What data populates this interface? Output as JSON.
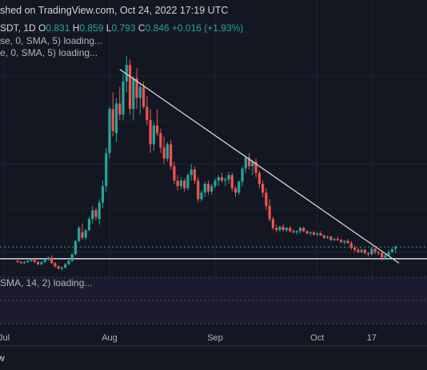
{
  "header": {
    "published": "shed on TradingView.com, Oct 24, 2022 17:19 UTC",
    "symbol_tf": "SDT, 1D",
    "o_label": "O",
    "o_value": "0.831",
    "h_label": "H",
    "h_value": "0.859",
    "l_label": "L",
    "l_value": "0.793",
    "c_label": "C",
    "c_value": "0.846",
    "change": "+0.016 (+1.93%)",
    "indicator1": "se, 0, SMA, 5) loading...",
    "indicator2": "e, 0, SMA, 5) loading...",
    "oscillator": "SMA, 14, 2) loading..."
  },
  "footer": {
    "label": "w"
  },
  "colors": {
    "background": "#131722",
    "up": "#26a69a",
    "down": "#ef5350",
    "trendline": "#d1d4dc",
    "grid": "#1f2330",
    "osc_band": "#1c1a2e",
    "osc_dotted": "#4a4a66"
  },
  "chart_data": {
    "type": "candlestick",
    "x_tick_labels": [
      "Jul",
      "Aug",
      "Sep",
      "Oct",
      "17"
    ],
    "x_tick_dates": [
      "2022-07-01",
      "2022-08-01",
      "2022-09-01",
      "2022-10-01",
      "2022-10-17"
    ],
    "last_date": "2022-10-24",
    "price_range": [
      0.6,
      2.8
    ],
    "support_line": 0.74,
    "dashed_level": 0.846,
    "trendline": {
      "from": [
        "2022-08-04",
        2.46
      ],
      "to": [
        "2022-10-25",
        0.7
      ]
    },
    "candles": [
      [
        0.72,
        0.73,
        0.7,
        0.71
      ],
      [
        0.71,
        0.72,
        0.69,
        0.7
      ],
      [
        0.7,
        0.72,
        0.69,
        0.71
      ],
      [
        0.71,
        0.73,
        0.7,
        0.72
      ],
      [
        0.72,
        0.74,
        0.71,
        0.73
      ],
      [
        0.73,
        0.75,
        0.7,
        0.71
      ],
      [
        0.71,
        0.72,
        0.68,
        0.69
      ],
      [
        0.69,
        0.72,
        0.68,
        0.71
      ],
      [
        0.71,
        0.74,
        0.7,
        0.73
      ],
      [
        0.73,
        0.76,
        0.72,
        0.75
      ],
      [
        0.75,
        0.77,
        0.69,
        0.7
      ],
      [
        0.7,
        0.71,
        0.66,
        0.67
      ],
      [
        0.67,
        0.68,
        0.64,
        0.65
      ],
      [
        0.65,
        0.67,
        0.63,
        0.66
      ],
      [
        0.66,
        0.7,
        0.65,
        0.69
      ],
      [
        0.69,
        0.73,
        0.68,
        0.72
      ],
      [
        0.72,
        0.79,
        0.71,
        0.78
      ],
      [
        0.78,
        0.91,
        0.77,
        0.9
      ],
      [
        0.9,
        1.04,
        0.89,
        1.02
      ],
      [
        0.98,
        1.06,
        0.91,
        0.93
      ],
      [
        0.93,
        1.01,
        0.91,
        1.0
      ],
      [
        1.0,
        1.12,
        0.99,
        1.1
      ],
      [
        1.1,
        1.22,
        1.06,
        1.18
      ],
      [
        1.18,
        1.2,
        1.09,
        1.12
      ],
      [
        1.1,
        1.28,
        1.05,
        1.25
      ],
      [
        1.25,
        1.45,
        1.2,
        1.4
      ],
      [
        1.4,
        1.75,
        1.35,
        1.7
      ],
      [
        1.7,
        2.12,
        1.65,
        2.1
      ],
      [
        2.1,
        2.25,
        1.85,
        1.9
      ],
      [
        1.88,
        2.2,
        1.8,
        2.15
      ],
      [
        2.15,
        2.3,
        2.0,
        2.05
      ],
      [
        2.05,
        2.42,
        2.0,
        2.35
      ],
      [
        2.35,
        2.58,
        2.25,
        2.5
      ],
      [
        2.5,
        2.55,
        2.05,
        2.1
      ],
      [
        2.1,
        2.4,
        2.0,
        2.38
      ],
      [
        2.38,
        2.47,
        2.1,
        2.2
      ],
      [
        2.2,
        2.33,
        2.05,
        2.3
      ],
      [
        2.3,
        2.35,
        2.1,
        2.12
      ],
      [
        2.12,
        2.22,
        1.95,
        2.0
      ],
      [
        2.0,
        2.1,
        1.7,
        1.78
      ],
      [
        1.78,
        1.98,
        1.72,
        1.95
      ],
      [
        1.95,
        2.1,
        1.85,
        1.88
      ],
      [
        1.88,
        1.92,
        1.7,
        1.75
      ],
      [
        1.75,
        1.85,
        1.6,
        1.65
      ],
      [
        1.65,
        1.8,
        1.62,
        1.78
      ],
      [
        1.78,
        1.82,
        1.55,
        1.58
      ],
      [
        1.58,
        1.62,
        1.42,
        1.45
      ],
      [
        1.45,
        1.5,
        1.36,
        1.4
      ],
      [
        1.4,
        1.48,
        1.37,
        1.45
      ],
      [
        1.45,
        1.47,
        1.35,
        1.38
      ],
      [
        1.38,
        1.52,
        1.36,
        1.5
      ],
      [
        1.5,
        1.6,
        1.45,
        1.55
      ],
      [
        1.55,
        1.58,
        1.42,
        1.45
      ],
      [
        1.45,
        1.48,
        1.25,
        1.28
      ],
      [
        1.28,
        1.36,
        1.26,
        1.34
      ],
      [
        1.34,
        1.44,
        1.3,
        1.42
      ],
      [
        1.42,
        1.45,
        1.32,
        1.35
      ],
      [
        1.35,
        1.42,
        1.32,
        1.4
      ],
      [
        1.4,
        1.47,
        1.38,
        1.45
      ],
      [
        1.45,
        1.5,
        1.4,
        1.48
      ],
      [
        1.48,
        1.52,
        1.43,
        1.45
      ],
      [
        1.45,
        1.48,
        1.4,
        1.46
      ],
      [
        1.46,
        1.53,
        1.42,
        1.5
      ],
      [
        1.5,
        1.52,
        1.35,
        1.38
      ],
      [
        1.38,
        1.4,
        1.3,
        1.34
      ],
      [
        1.34,
        1.45,
        1.32,
        1.44
      ],
      [
        1.44,
        1.58,
        1.4,
        1.56
      ],
      [
        1.56,
        1.68,
        1.52,
        1.66
      ],
      [
        1.66,
        1.7,
        1.55,
        1.58
      ],
      [
        1.58,
        1.64,
        1.5,
        1.62
      ],
      [
        1.62,
        1.65,
        1.48,
        1.52
      ],
      [
        1.52,
        1.54,
        1.38,
        1.42
      ],
      [
        1.42,
        1.45,
        1.3,
        1.34
      ],
      [
        1.34,
        1.38,
        1.18,
        1.22
      ],
      [
        1.22,
        1.28,
        1.08,
        1.1
      ],
      [
        1.1,
        1.12,
        1.0,
        1.02
      ],
      [
        1.02,
        1.05,
        0.98,
        1.0
      ],
      [
        1.0,
        1.04,
        0.98,
        1.03
      ],
      [
        1.03,
        1.05,
        0.99,
        1.0
      ],
      [
        1.0,
        1.03,
        0.98,
        1.02
      ],
      [
        1.02,
        1.04,
        0.98,
        0.99
      ],
      [
        0.99,
        1.01,
        0.97,
        0.98
      ],
      [
        0.98,
        1.0,
        0.96,
        0.99
      ],
      [
        0.99,
        1.03,
        0.97,
        1.02
      ],
      [
        1.02,
        1.03,
        0.98,
        0.99
      ],
      [
        0.99,
        1.0,
        0.96,
        0.97
      ],
      [
        0.97,
        0.99,
        0.95,
        0.98
      ],
      [
        0.98,
        0.99,
        0.95,
        0.96
      ],
      [
        0.96,
        0.98,
        0.94,
        0.97
      ],
      [
        0.97,
        0.99,
        0.95,
        0.95
      ],
      [
        0.95,
        0.96,
        0.92,
        0.93
      ],
      [
        0.93,
        0.95,
        0.92,
        0.94
      ],
      [
        0.94,
        0.95,
        0.9,
        0.91
      ],
      [
        0.91,
        0.93,
        0.9,
        0.92
      ],
      [
        0.92,
        0.94,
        0.9,
        0.91
      ],
      [
        0.91,
        0.92,
        0.88,
        0.89
      ],
      [
        0.89,
        0.91,
        0.87,
        0.9
      ],
      [
        0.9,
        0.92,
        0.88,
        0.88
      ],
      [
        0.88,
        0.9,
        0.82,
        0.84
      ],
      [
        0.84,
        0.86,
        0.8,
        0.82
      ],
      [
        0.82,
        0.84,
        0.79,
        0.8
      ],
      [
        0.8,
        0.83,
        0.79,
        0.82
      ],
      [
        0.82,
        0.83,
        0.78,
        0.79
      ],
      [
        0.79,
        0.8,
        0.76,
        0.78
      ],
      [
        0.78,
        0.85,
        0.77,
        0.83
      ],
      [
        0.83,
        0.84,
        0.78,
        0.8
      ],
      [
        0.8,
        0.81,
        0.77,
        0.79
      ],
      [
        0.79,
        0.8,
        0.72,
        0.75
      ],
      [
        0.75,
        0.78,
        0.74,
        0.77
      ],
      [
        0.77,
        0.82,
        0.76,
        0.8
      ],
      [
        0.8,
        0.83,
        0.79,
        0.83
      ],
      [
        0.83,
        0.859,
        0.793,
        0.846
      ]
    ]
  }
}
